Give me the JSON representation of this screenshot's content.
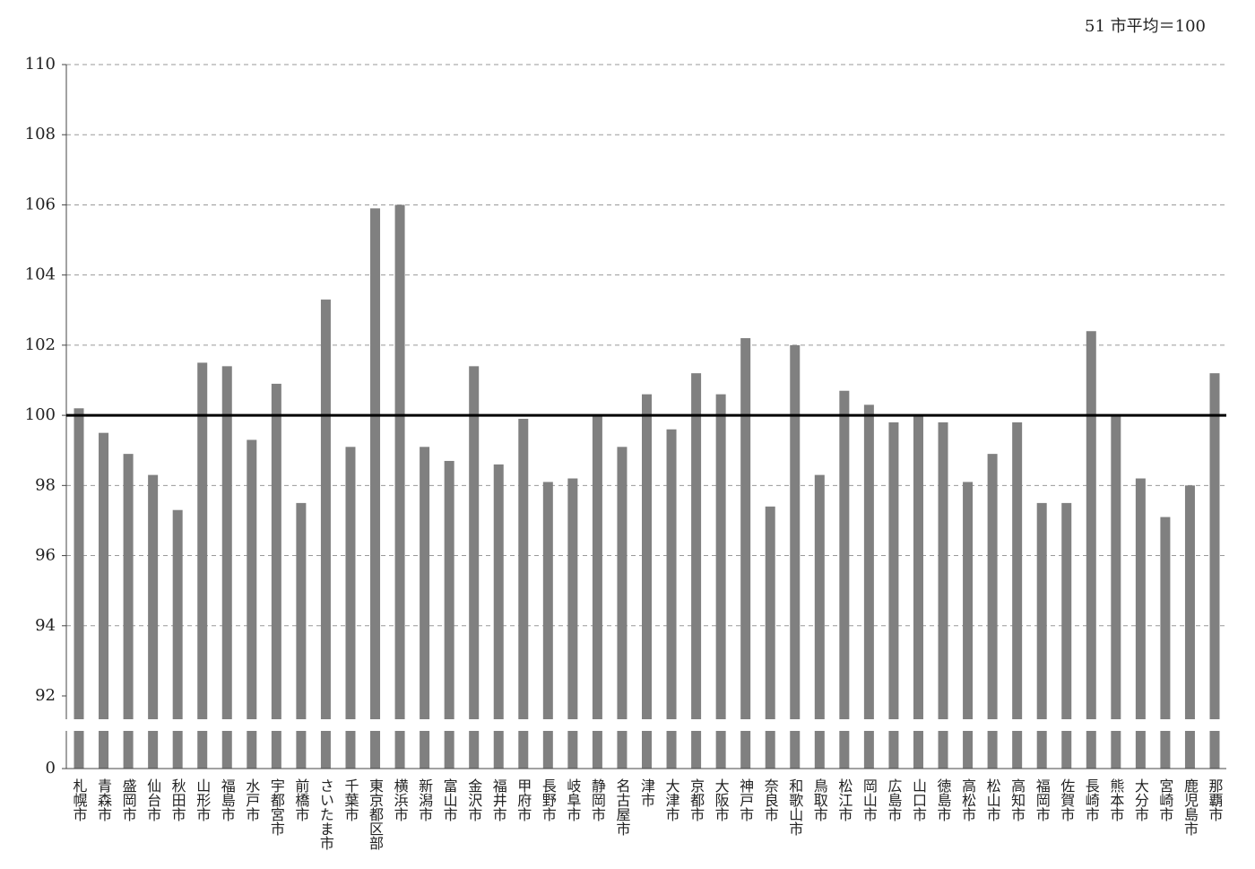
{
  "chart_data": {
    "type": "bar",
    "annotation": "51 市平均＝100",
    "categories": [
      "札幌市",
      "青森市",
      "盛岡市",
      "仙台市",
      "秋田市",
      "山形市",
      "福島市",
      "水戸市",
      "宇都宮市",
      "前橋市",
      "さいたま市",
      "千葉市",
      "東京都区部",
      "横浜市",
      "新潟市",
      "富山市",
      "金沢市",
      "福井市",
      "甲府市",
      "長野市",
      "岐阜市",
      "静岡市",
      "名古屋市",
      "津市",
      "大津市",
      "京都市",
      "大阪市",
      "神戸市",
      "奈良市",
      "和歌山市",
      "鳥取市",
      "松江市",
      "岡山市",
      "広島市",
      "山口市",
      "徳島市",
      "高松市",
      "松山市",
      "高知市",
      "福岡市",
      "佐賀市",
      "長崎市",
      "熊本市",
      "大分市",
      "宮崎市",
      "鹿児島市",
      "那覇市"
    ],
    "values": [
      100.2,
      99.5,
      98.9,
      98.3,
      97.3,
      101.5,
      101.4,
      99.3,
      100.9,
      97.5,
      103.3,
      99.1,
      105.9,
      106.0,
      99.1,
      98.7,
      101.4,
      98.6,
      99.9,
      98.1,
      98.2,
      100.0,
      99.1,
      100.6,
      99.6,
      101.2,
      100.6,
      102.2,
      97.4,
      102.0,
      98.3,
      100.7,
      100.3,
      99.8,
      100.0,
      99.8,
      98.1,
      98.9,
      99.8,
      97.5,
      97.5,
      102.4,
      100.0,
      98.2,
      97.1,
      98.0,
      101.2
    ],
    "color": "#808080",
    "ylim": [
      0,
      110
    ],
    "ybreak": [
      0,
      92
    ],
    "yticks": [
      0,
      92,
      94,
      96,
      98,
      100,
      102,
      104,
      106,
      108,
      110
    ],
    "reference_line": 100,
    "grid": true
  }
}
